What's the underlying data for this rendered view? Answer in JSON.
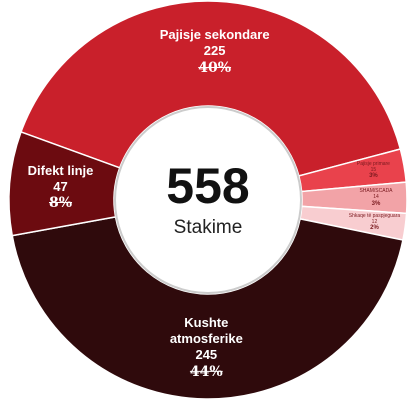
{
  "chart_data": {
    "type": "donut",
    "categories": [
      "Pajisje sekondare",
      "Pajisje primare",
      "SHAM/SCADA",
      "Shkaqe të paspjeguara",
      "Kushte atmosferike",
      "Difekt linje"
    ],
    "values": [
      225,
      15,
      14,
      12,
      245,
      47
    ],
    "value_labels": [
      "40%",
      "3%",
      "3%",
      "2%",
      "44%",
      "8%"
    ],
    "colors": [
      "#c9202b",
      "#e9424c",
      "#f2a3a7",
      "#f8cdd0",
      "#2f0a0c",
      "#6c0b10"
    ],
    "total": 558,
    "total_label": "Stakime"
  }
}
